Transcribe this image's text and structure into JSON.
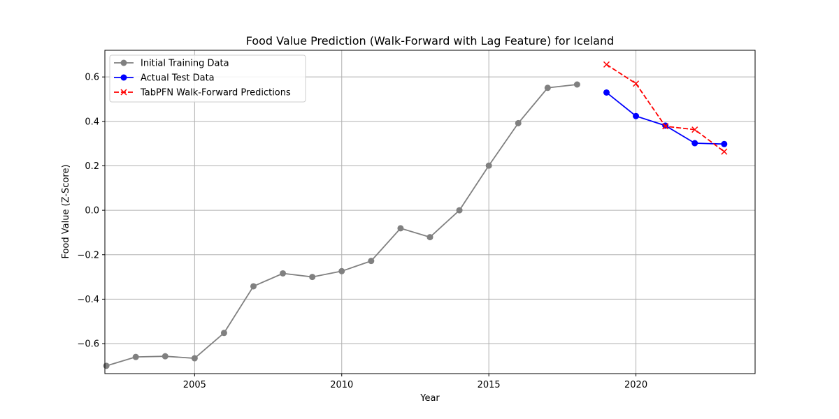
{
  "chart_data": {
    "type": "line",
    "title": "Food Value Prediction (Walk-Forward with Lag Feature) for Iceland",
    "xlabel": "Year",
    "ylabel": "Food Value (Z-Score)",
    "xlim": [
      2001.95,
      2024.05
    ],
    "ylim": [
      -0.735,
      0.72
    ],
    "x_ticks": [
      2005,
      2010,
      2015,
      2020
    ],
    "y_ticks": [
      -0.6,
      -0.4,
      -0.2,
      0.0,
      0.2,
      0.4,
      0.6
    ],
    "y_tick_labels": [
      "−0.6",
      "−0.4",
      "−0.2",
      "0.0",
      "0.2",
      "0.4",
      "0.6"
    ],
    "grid": true,
    "legend_position": "top-left",
    "series": [
      {
        "name": "Initial Training Data",
        "color": "#808080",
        "line_style": "solid",
        "marker": "circle",
        "x": [
          2002,
          2003,
          2004,
          2005,
          2006,
          2007,
          2008,
          2009,
          2010,
          2011,
          2012,
          2013,
          2014,
          2015,
          2016,
          2017,
          2018
        ],
        "y": [
          -0.7,
          -0.66,
          -0.657,
          -0.666,
          -0.552,
          -0.342,
          -0.284,
          -0.3,
          -0.274,
          -0.228,
          -0.081,
          -0.121,
          0.0,
          0.201,
          0.392,
          0.551,
          0.566
        ]
      },
      {
        "name": "Actual Test Data",
        "color": "#0000ff",
        "line_style": "solid",
        "marker": "circle",
        "x": [
          2019,
          2020,
          2021,
          2022,
          2023
        ],
        "y": [
          0.53,
          0.424,
          0.381,
          0.302,
          0.298
        ]
      },
      {
        "name": "TabPFN Walk-Forward Predictions",
        "color": "#ff0000",
        "line_style": "dashed",
        "marker": "x",
        "x": [
          2019,
          2020,
          2021,
          2022,
          2023
        ],
        "y": [
          0.656,
          0.57,
          0.378,
          0.363,
          0.264
        ]
      }
    ]
  }
}
